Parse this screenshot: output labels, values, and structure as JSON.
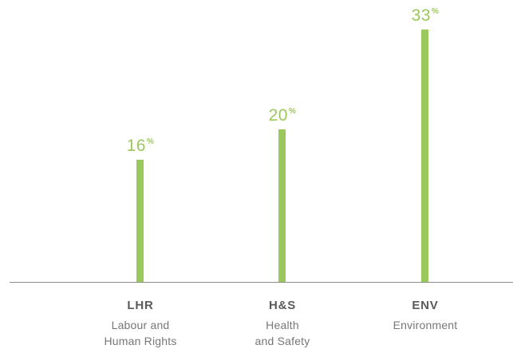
{
  "chart_data": {
    "type": "bar",
    "categories": [
      "LHR",
      "H&S",
      "ENV"
    ],
    "category_descriptions": [
      [
        "Labour and",
        "Human Rights"
      ],
      [
        "Health",
        "and Safety"
      ],
      [
        "Environment"
      ]
    ],
    "values": [
      16,
      20,
      33
    ],
    "value_unit": "%",
    "ylim": [
      0,
      35
    ],
    "grid": false,
    "legend": "none",
    "bar_color": "#9bc85d",
    "label_color": "#9bc85d"
  }
}
